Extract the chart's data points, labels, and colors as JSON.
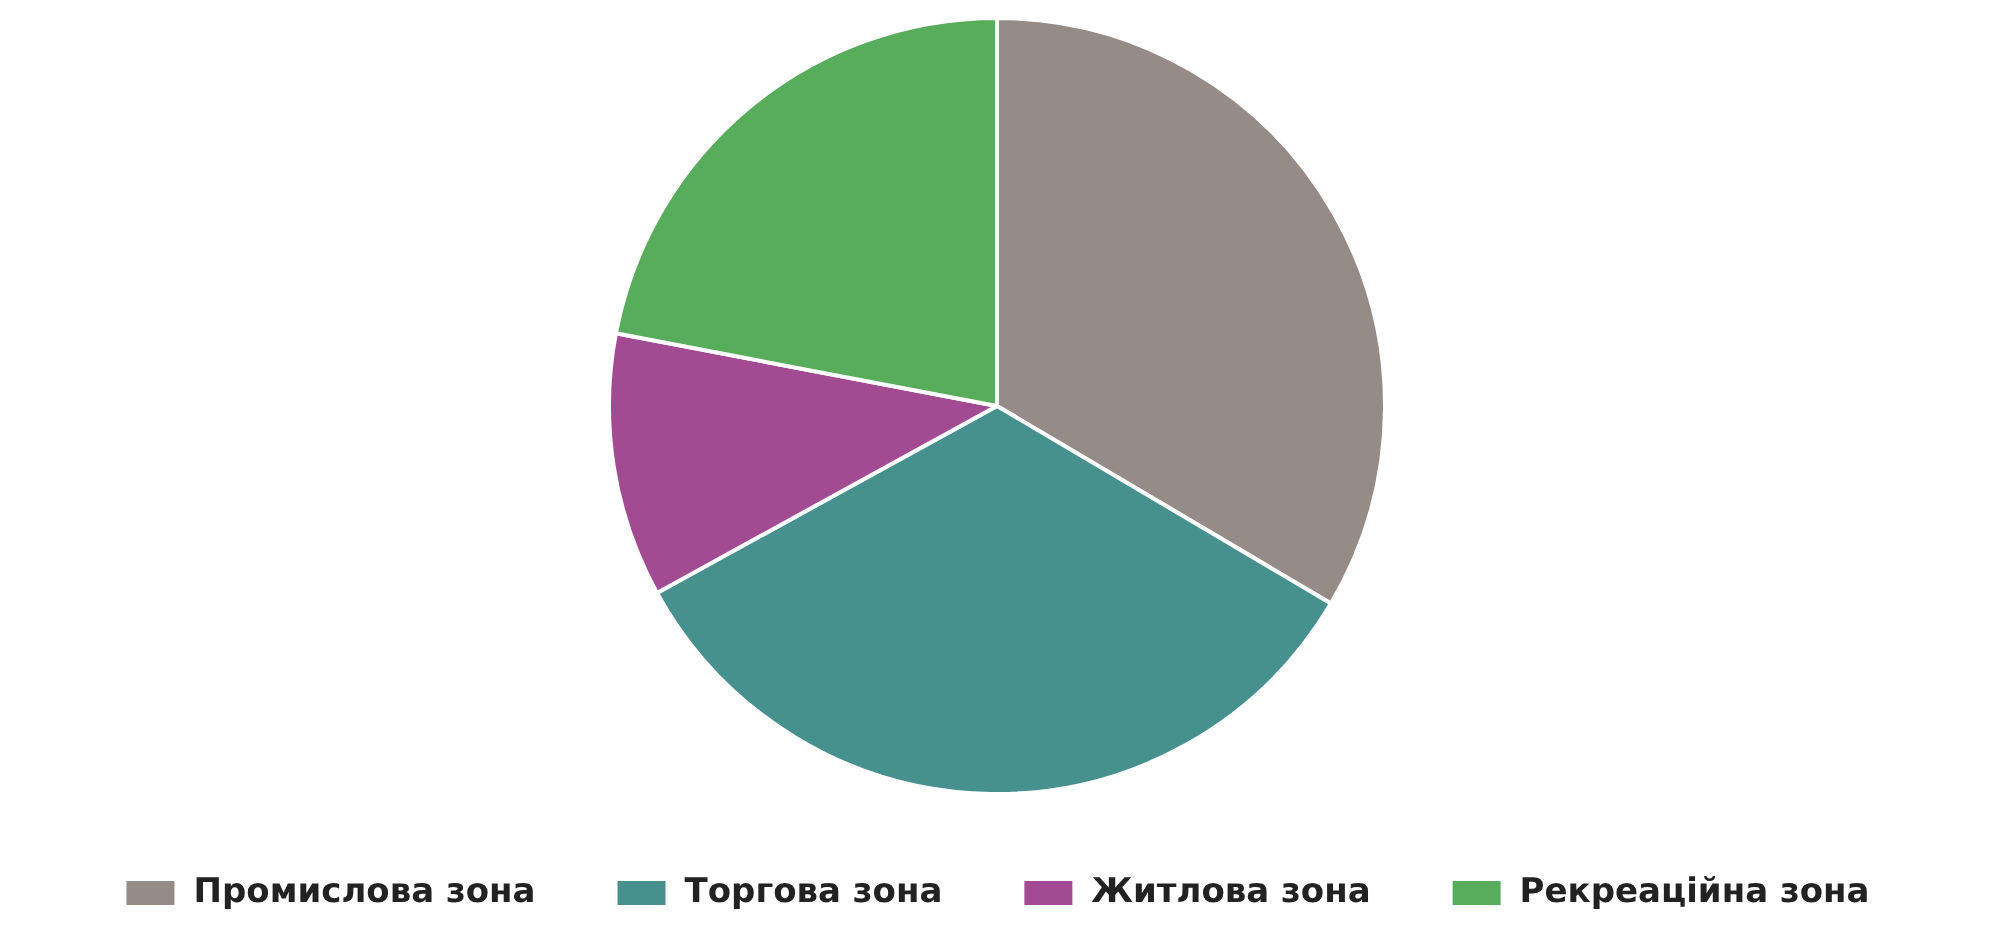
{
  "chart_data": {
    "type": "pie",
    "categories": [
      "Промислова зона",
      "Торгова зона",
      "Житлова зона",
      "Рекреаційна зона"
    ],
    "values": [
      33.5,
      33.5,
      11,
      22
    ],
    "colors": [
      "#968c87",
      "#46908e",
      "#a24b93",
      "#57ad5b"
    ],
    "legend": "bottom"
  }
}
